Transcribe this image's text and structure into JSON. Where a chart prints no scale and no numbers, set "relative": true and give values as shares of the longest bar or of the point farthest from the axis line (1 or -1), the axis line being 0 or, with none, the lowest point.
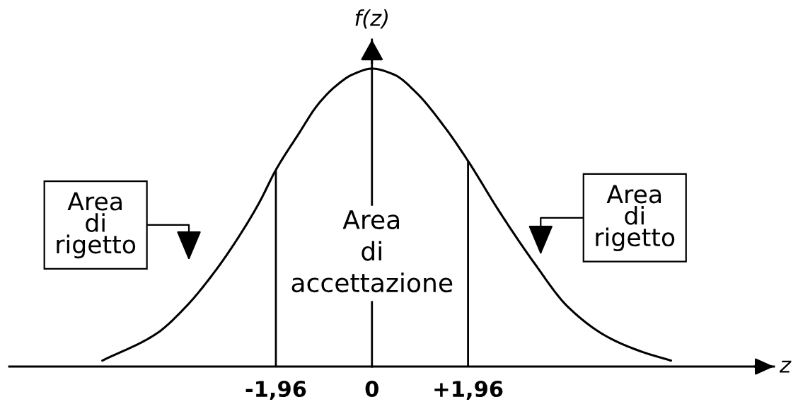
{
  "chart_data": {
    "type": "line",
    "relative": true,
    "xlabel": "z",
    "ylabel": "f(z)",
    "x": [
      -5.5,
      -4.4,
      -3.8,
      -3.2,
      -2.7,
      -2.3,
      -1.96,
      -1.5,
      -1.1,
      -0.75,
      -0.4,
      0,
      0.45,
      0.9,
      1.5,
      1.96,
      2.6,
      3.3,
      4.0,
      4.8,
      5.5,
      6.1
    ],
    "series": [
      {
        "color": "#000000",
        "values": [
          0.02,
          0.11,
          0.2,
          0.32,
          0.44,
          0.55,
          0.66,
          0.78,
          0.88,
          0.94,
          0.98,
          1.0,
          0.98,
          0.92,
          0.8,
          0.69,
          0.52,
          0.35,
          0.2,
          0.1,
          0.05,
          0.02
        ]
      }
    ],
    "xlim": [
      -7.4,
      8.2
    ],
    "xticks": [
      {
        "value": -1.96,
        "label": "-1,96"
      },
      0,
      {
        "value": 1.96,
        "label": "+1,96"
      }
    ],
    "tick_labels": "x",
    "ref_lines": [
      {
        "axis": "x",
        "value": -1.96,
        "color": "#000000"
      },
      {
        "axis": "x",
        "value": 1.96,
        "color": "#000000"
      }
    ],
    "annotations": [
      "Area\ndi\nrigetto",
      "Area\ndi\naccettazione",
      "Area\ndi\nrigetto"
    ],
    "line_style": "solid"
  }
}
